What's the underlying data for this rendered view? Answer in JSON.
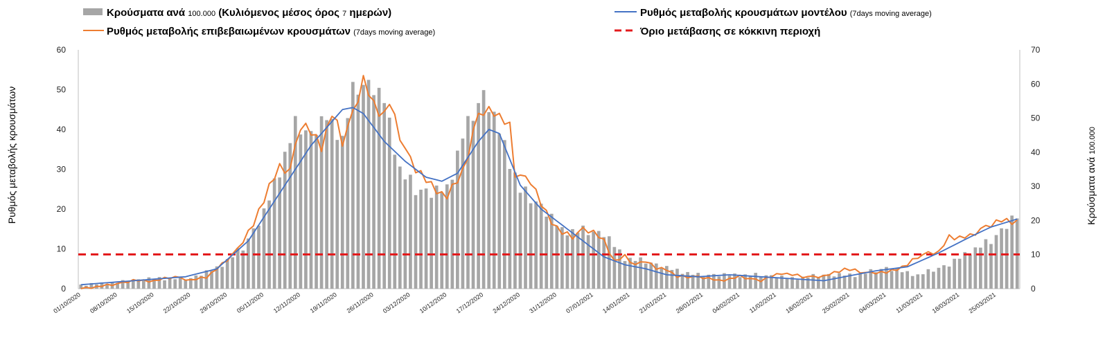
{
  "legend": {
    "bars": {
      "main": "Κρούσματα ανά ",
      "small": "100.000",
      "rest": " (Κυλιόμενος μέσος όρος ",
      "small2": "7",
      "end": " ημερών)"
    },
    "model": {
      "main": "Ρυθμός μεταβολής κρουσμάτων μοντέλου ",
      "small": "(7days moving average)"
    },
    "confirmed": {
      "main": "Ρυθμός μεταβολής επιβεβαιωμένων κρουσμάτων ",
      "small": "(7days moving average)"
    },
    "threshold": {
      "main": "Όριο μετάβασης σε κόκκινη περιοχή"
    }
  },
  "chart_data": {
    "type": "bar+line",
    "left_axis": {
      "title": "Ρυθμός μεταβολής κρουσμάτων",
      "min": 0,
      "max": 60,
      "ticks": [
        0,
        10,
        20,
        30,
        40,
        50,
        60
      ]
    },
    "right_axis": {
      "title_main": "Κρούσματα ανά ",
      "title_small": "100.000",
      "min": 0,
      "max": 70,
      "ticks": [
        0,
        10,
        20,
        30,
        40,
        50,
        60,
        70
      ]
    },
    "x_ticks": [
      "01/10/2020",
      "08/10/2020",
      "15/10/2020",
      "22/10/2020",
      "29/10/2020",
      "05/11/2020",
      "12/11/2020",
      "19/11/2020",
      "26/11/2020",
      "03/12/2020",
      "10/12/2020",
      "17/12/2020",
      "24/12/2020",
      "31/12/2020",
      "07/01/2021",
      "14/01/2021",
      "21/01/2021",
      "28/01/2021",
      "04/02/2021",
      "11/02/2021",
      "18/02/2021",
      "25/02/2021",
      "04/03/2021",
      "11/03/2021",
      "18/03/2021",
      "25/03/2021"
    ],
    "num_days": 180,
    "threshold": 8.6,
    "colors": {
      "bars": "#a6a6a6",
      "model": "#4472c4",
      "confirmed": "#ed7d31",
      "threshold": "#e31a1c"
    },
    "bars_knots": [
      [
        0,
        1
      ],
      [
        8,
        2
      ],
      [
        14,
        3
      ],
      [
        21,
        3
      ],
      [
        26,
        6
      ],
      [
        31,
        12
      ],
      [
        35,
        22
      ],
      [
        38,
        35
      ],
      [
        41,
        48
      ],
      [
        44,
        45
      ],
      [
        47,
        50
      ],
      [
        50,
        44
      ],
      [
        52,
        58
      ],
      [
        55,
        60
      ],
      [
        58,
        55
      ],
      [
        61,
        35
      ],
      [
        64,
        29
      ],
      [
        67,
        28
      ],
      [
        70,
        29
      ],
      [
        73,
        45
      ],
      [
        77,
        57
      ],
      [
        80,
        46
      ],
      [
        84,
        29
      ],
      [
        88,
        24
      ],
      [
        92,
        17
      ],
      [
        96,
        17
      ],
      [
        100,
        16
      ],
      [
        104,
        9
      ],
      [
        108,
        8
      ],
      [
        112,
        6
      ],
      [
        118,
        4
      ],
      [
        124,
        4
      ],
      [
        130,
        4
      ],
      [
        136,
        3
      ],
      [
        142,
        4
      ],
      [
        148,
        4
      ],
      [
        154,
        6
      ],
      [
        160,
        4
      ],
      [
        166,
        7
      ],
      [
        170,
        11
      ],
      [
        174,
        14
      ],
      [
        178,
        20
      ],
      [
        179,
        21
      ]
    ],
    "confirmed_knots": [
      [
        0,
        0
      ],
      [
        6,
        1
      ],
      [
        10,
        2
      ],
      [
        14,
        2
      ],
      [
        18,
        3
      ],
      [
        21,
        2
      ],
      [
        24,
        3
      ],
      [
        27,
        6
      ],
      [
        30,
        10
      ],
      [
        33,
        16
      ],
      [
        36,
        26
      ],
      [
        38,
        30
      ],
      [
        40,
        30
      ],
      [
        42,
        41
      ],
      [
        44,
        39
      ],
      [
        46,
        36
      ],
      [
        48,
        44
      ],
      [
        50,
        37
      ],
      [
        52,
        44
      ],
      [
        54,
        52
      ],
      [
        56,
        46
      ],
      [
        58,
        44
      ],
      [
        59,
        47
      ],
      [
        60,
        42
      ],
      [
        62,
        35
      ],
      [
        64,
        30
      ],
      [
        66,
        27
      ],
      [
        68,
        25
      ],
      [
        70,
        23
      ],
      [
        71,
        25
      ],
      [
        73,
        30
      ],
      [
        74,
        32
      ],
      [
        75,
        41
      ],
      [
        77,
        44
      ],
      [
        79,
        45
      ],
      [
        81,
        42
      ],
      [
        82,
        40
      ],
      [
        83,
        29
      ],
      [
        86,
        27
      ],
      [
        88,
        21
      ],
      [
        90,
        17
      ],
      [
        92,
        14
      ],
      [
        94,
        13
      ],
      [
        96,
        15
      ],
      [
        98,
        14
      ],
      [
        100,
        12
      ],
      [
        102,
        7
      ],
      [
        104,
        8
      ],
      [
        106,
        6
      ],
      [
        108,
        7
      ],
      [
        110,
        5
      ],
      [
        112,
        5
      ],
      [
        114,
        3
      ],
      [
        118,
        3
      ],
      [
        122,
        2
      ],
      [
        126,
        3
      ],
      [
        130,
        2
      ],
      [
        134,
        4
      ],
      [
        138,
        3
      ],
      [
        142,
        3
      ],
      [
        146,
        5
      ],
      [
        150,
        4
      ],
      [
        154,
        4
      ],
      [
        158,
        6
      ],
      [
        160,
        8
      ],
      [
        162,
        9
      ],
      [
        164,
        9
      ],
      [
        166,
        13
      ],
      [
        168,
        13
      ],
      [
        170,
        13
      ],
      [
        172,
        15
      ],
      [
        176,
        17
      ],
      [
        179,
        17
      ]
    ],
    "model_knots": [
      [
        0,
        1
      ],
      [
        10,
        2
      ],
      [
        20,
        3
      ],
      [
        26,
        5
      ],
      [
        32,
        12
      ],
      [
        38,
        24
      ],
      [
        44,
        36
      ],
      [
        50,
        45
      ],
      [
        52,
        45.5
      ],
      [
        54,
        44
      ],
      [
        58,
        37
      ],
      [
        62,
        32
      ],
      [
        66,
        28
      ],
      [
        69,
        27
      ],
      [
        72,
        29
      ],
      [
        76,
        37
      ],
      [
        78,
        40
      ],
      [
        80,
        39
      ],
      [
        84,
        26
      ],
      [
        88,
        20
      ],
      [
        92,
        16
      ],
      [
        96,
        12
      ],
      [
        100,
        8
      ],
      [
        104,
        6
      ],
      [
        108,
        5
      ],
      [
        112,
        3.5
      ],
      [
        118,
        3
      ],
      [
        124,
        3.5
      ],
      [
        130,
        3
      ],
      [
        136,
        2.5
      ],
      [
        142,
        2
      ],
      [
        146,
        3
      ],
      [
        152,
        4.5
      ],
      [
        158,
        5.5
      ],
      [
        164,
        9
      ],
      [
        170,
        13
      ],
      [
        174,
        15.5
      ],
      [
        179,
        17.5
      ]
    ]
  }
}
